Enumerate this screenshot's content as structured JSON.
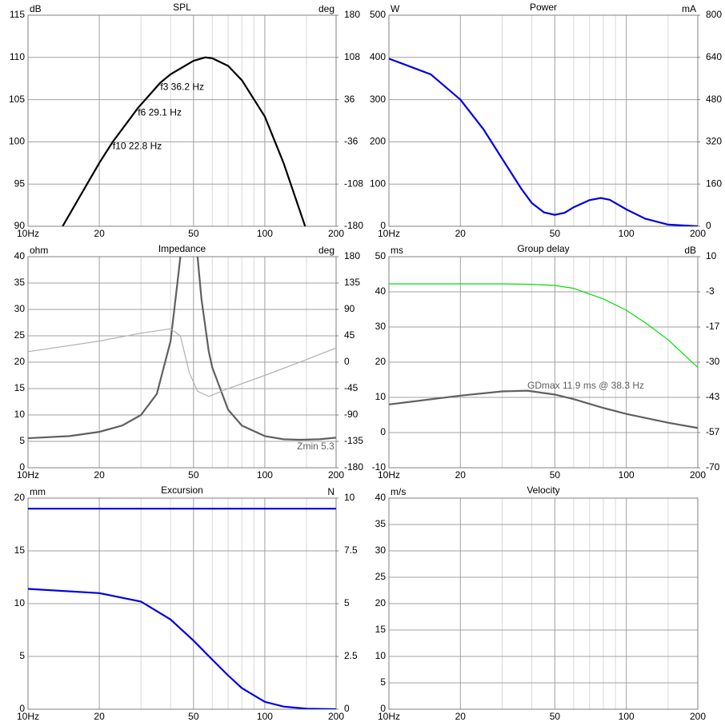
{
  "chart_data": [
    {
      "type": "line",
      "title": "SPL",
      "ylabel": "dB",
      "y2label": "deg",
      "log_x": true,
      "xlim": [
        10,
        200
      ],
      "xticks": [
        {
          "value": 10,
          "label": "10Hz"
        },
        20,
        50,
        100,
        200
      ],
      "minor_xticks": [
        30,
        40,
        60,
        70,
        80,
        90,
        150
      ],
      "ylim": [
        90,
        115
      ],
      "yticks": [
        90,
        95,
        100,
        105,
        110,
        115
      ],
      "y2lim": [
        -180,
        180
      ],
      "y2ticks": [
        -180,
        -108,
        -36,
        36,
        108,
        180
      ],
      "series": [
        {
          "color": "#000000",
          "x": [
            14,
            20,
            22.8,
            29.1,
            36.2,
            40,
            50,
            56,
            60,
            70,
            80,
            100,
            120,
            148
          ],
          "values": [
            90,
            97.5,
            100,
            104,
            107,
            108,
            109.6,
            110,
            109.9,
            109,
            107.3,
            103,
            97.5,
            90
          ]
        }
      ],
      "annotations": [
        {
          "text": "f3 36.2 Hz",
          "x": 36.2,
          "y": 107
        },
        {
          "text": "f6 29.1 Hz",
          "x": 29.1,
          "y": 104
        },
        {
          "text": "f10 22.8 Hz",
          "x": 22.8,
          "y": 100
        }
      ]
    },
    {
      "type": "line",
      "title": "Power",
      "ylabel": "W",
      "y2label": "mA",
      "log_x": true,
      "xlim": [
        10,
        200
      ],
      "xticks": [
        {
          "value": 10,
          "label": "10Hz"
        },
        20,
        50,
        100,
        200
      ],
      "minor_xticks": [
        30,
        40,
        60,
        70,
        80,
        90,
        150
      ],
      "ylim": [
        0,
        500
      ],
      "yticks": [
        0,
        100,
        200,
        300,
        400,
        500
      ],
      "y2lim": [
        0,
        800
      ],
      "y2ticks": [
        0,
        160,
        320,
        480,
        640,
        800
      ],
      "series": [
        {
          "color": "#0000e0",
          "x": [
            10,
            15,
            20,
            25,
            30,
            36,
            40,
            45,
            50,
            55,
            60,
            70,
            78,
            85,
            100,
            120,
            150,
            200
          ],
          "values": [
            397,
            360,
            300,
            230,
            160,
            90,
            55,
            33,
            27,
            32,
            45,
            62,
            67,
            63,
            40,
            18,
            4,
            0
          ]
        }
      ]
    },
    {
      "type": "line",
      "title": "Impedance",
      "ylabel": "ohm",
      "y2label": "deg",
      "log_x": true,
      "xlim": [
        10,
        200
      ],
      "xticks": [
        {
          "value": 10,
          "label": "10Hz"
        },
        20,
        50,
        100,
        200
      ],
      "minor_xticks": [
        30,
        40,
        60,
        70,
        80,
        90,
        150
      ],
      "ylim": [
        0,
        40
      ],
      "yticks": [
        0,
        5,
        10,
        15,
        20,
        25,
        30,
        35,
        40
      ],
      "y2lim": [
        -180,
        180
      ],
      "y2ticks": [
        -180,
        -135,
        -90,
        -45,
        0,
        45,
        90,
        135,
        180
      ],
      "series": [
        {
          "color": "#606060",
          "x": [
            10,
            15,
            20,
            25,
            30,
            35,
            40,
            43,
            44,
            48,
            52,
            54,
            58,
            60,
            70,
            80,
            100,
            120,
            140,
            170,
            200
          ],
          "values": [
            5.6,
            6.0,
            6.8,
            8,
            10,
            14,
            24,
            36,
            40,
            null,
            40,
            32,
            22,
            19,
            11,
            8,
            6,
            5.4,
            5.3,
            5.4,
            5.7
          ]
        },
        {
          "color": "#b0b0b0",
          "axis": "y2",
          "x": [
            10,
            20,
            30,
            40,
            44,
            48,
            52,
            58,
            70,
            100,
            150,
            200
          ],
          "values": [
            18,
            36,
            49.5,
            57,
            45,
            -18,
            -49.5,
            -58.5,
            -45,
            -22.5,
            4.5,
            24.3
          ]
        }
      ],
      "annotations": [
        {
          "text": "Zmin 5.3 Ω",
          "x": 140,
          "y": 5.3
        }
      ]
    },
    {
      "type": "line",
      "title": "Group delay",
      "ylabel": "ms",
      "y2label": "dB",
      "log_x": true,
      "xlim": [
        10,
        200
      ],
      "xticks": [
        {
          "value": 10,
          "label": "10Hz"
        },
        20,
        50,
        100,
        200
      ],
      "minor_xticks": [
        30,
        40,
        60,
        70,
        80,
        90,
        150
      ],
      "ylim": [
        -10,
        50
      ],
      "yticks": [
        -10,
        0,
        10,
        20,
        30,
        40,
        50
      ],
      "y2lim": [
        -70,
        10
      ],
      "y2ticks": [
        -70,
        {
          "value": -56.67,
          "label": "-57"
        },
        {
          "value": -43.33,
          "label": "-43"
        },
        -30,
        {
          "value": -16.67,
          "label": "-17"
        },
        {
          "value": -3.33,
          "label": "-3"
        },
        10
      ],
      "series": [
        {
          "color": "#00e000",
          "axis": "y2",
          "x": [
            10,
            20,
            30,
            40,
            50,
            60,
            70,
            80,
            100,
            120,
            150,
            200
          ],
          "values": [
            -0.3,
            -0.3,
            -0.3,
            -0.5,
            -0.9,
            -2,
            -4.2,
            -6,
            -10.3,
            -15,
            -21.5,
            -32
          ]
        },
        {
          "color": "#606060",
          "x": [
            10,
            20,
            30,
            38.3,
            50,
            60,
            80,
            100,
            150,
            200
          ],
          "values": [
            8,
            10.5,
            11.7,
            11.9,
            10.8,
            9.5,
            7,
            5.3,
            2.8,
            1.3
          ]
        }
      ],
      "annotations": [
        {
          "text": "GDmax 11.9 ms  @ 38.3 Hz",
          "x": 38.3,
          "y": 11.9
        }
      ]
    },
    {
      "type": "line",
      "title": "Excursion",
      "ylabel": "mm",
      "y2label": "N",
      "log_x": true,
      "xlim": [
        10,
        200
      ],
      "xticks": [
        {
          "value": 10,
          "label": "10Hz"
        },
        20,
        50,
        100,
        200
      ],
      "minor_xticks": [
        30,
        40,
        60,
        70,
        80,
        90,
        150
      ],
      "ylim": [
        0,
        20
      ],
      "yticks": [
        0,
        5,
        10,
        15,
        20
      ],
      "y2lim": [
        0,
        10
      ],
      "y2ticks": [
        0,
        2.5,
        5,
        7.5,
        10
      ],
      "series": [
        {
          "color": "#0000e0",
          "x": [
            10,
            200
          ],
          "values": [
            19,
            19
          ]
        },
        {
          "color": "#0000e0",
          "x": [
            10,
            20,
            30,
            40,
            50,
            60,
            70,
            80,
            100,
            120,
            150,
            200
          ],
          "values": [
            11.4,
            11.0,
            10.2,
            8.5,
            6.5,
            4.7,
            3.2,
            2.0,
            0.7,
            0.25,
            0.05,
            0
          ]
        }
      ]
    },
    {
      "type": "line",
      "title": "Velocity",
      "ylabel": "m/s",
      "log_x": true,
      "xlim": [
        10,
        200
      ],
      "xticks": [
        {
          "value": 10,
          "label": "10Hz"
        },
        20,
        50,
        100,
        200
      ],
      "minor_xticks": [
        30,
        40,
        60,
        70,
        80,
        90,
        150
      ],
      "ylim": [
        0,
        40
      ],
      "yticks": [
        0,
        5,
        10,
        15,
        20,
        25,
        30,
        35,
        40
      ],
      "series": []
    }
  ]
}
